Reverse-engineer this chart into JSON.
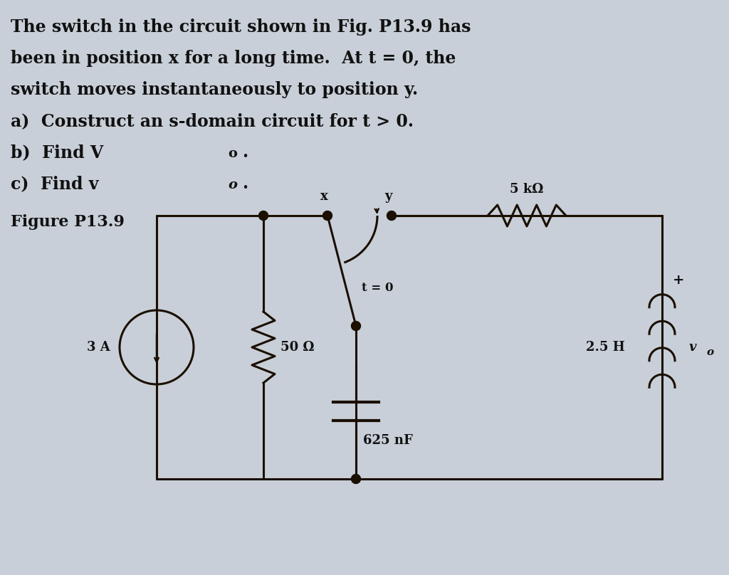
{
  "bg_color": "#c8cfd8",
  "wire_color": "#1a0f00",
  "text_color": "#111111",
  "text_lines": [
    "The switch in the circuit shown in Fig. P13.9 has",
    "been in position x for a long time.  At t = 0, the",
    "switch moves instantaneously to position y."
  ],
  "line_a": "a)  Construct an s-domain circuit for t > 0.",
  "line_b": "b)  Find V",
  "line_b_sub": "o",
  "line_c": "c)  Find v",
  "line_c_sub": "o",
  "figure_label": "Figure P13.9",
  "resistor_50": "50 Ω",
  "resistor_5k": "5 kΩ",
  "capacitor_label": "625 nF",
  "inductor_label": "2.5 H",
  "current_label": "3 A",
  "switch_x_label": "x",
  "switch_y_label": "y",
  "switch_t_label": "t = 0",
  "vo_label": "v",
  "vo_sub": "o",
  "plus_sign": "+",
  "font_size_main": 17,
  "font_size_label": 13,
  "font_size_small": 12
}
